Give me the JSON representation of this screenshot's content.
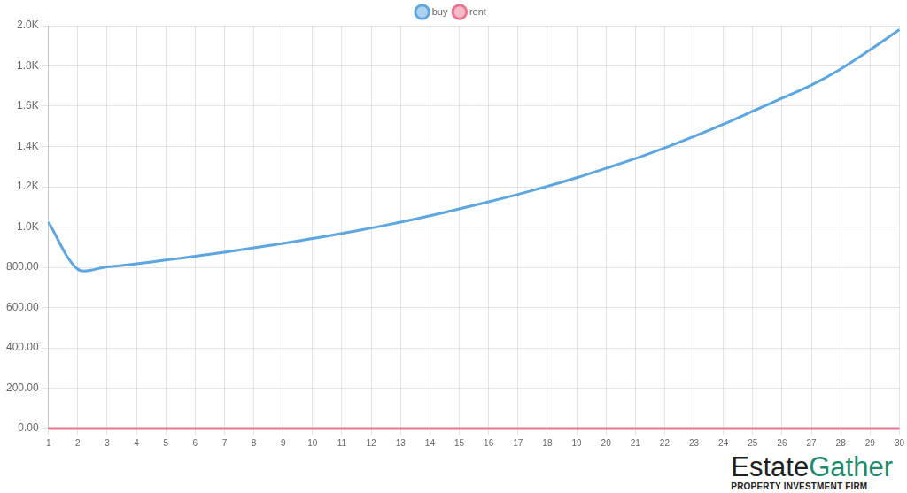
{
  "chart_data": {
    "type": "line",
    "categories": [
      1,
      2,
      3,
      4,
      5,
      6,
      7,
      8,
      9,
      10,
      11,
      12,
      13,
      14,
      15,
      16,
      17,
      18,
      19,
      20,
      21,
      22,
      23,
      24,
      25,
      26,
      27,
      28,
      29,
      30
    ],
    "series": [
      {
        "name": "buy",
        "color": "#5ea6e0",
        "values": [
          1024,
          790,
          802,
          818,
          836,
          855,
          875,
          897,
          919,
          943,
          968,
          995,
          1024,
          1056,
          1090,
          1125,
          1162,
          1202,
          1245,
          1292,
          1340,
          1393,
          1450,
          1510,
          1575,
          1640,
          1705,
          1785,
          1880,
          1980
        ]
      },
      {
        "name": "rent",
        "color": "#ec7592",
        "values": [
          0,
          0,
          0,
          0,
          0,
          0,
          0,
          0,
          0,
          0,
          0,
          0,
          0,
          0,
          0,
          0,
          0,
          0,
          0,
          0,
          0,
          0,
          0,
          0,
          0,
          0,
          0,
          0,
          0,
          0
        ]
      }
    ],
    "ylim": [
      0,
      2000
    ],
    "yticks": [
      {
        "value": 0,
        "label": "0.00"
      },
      {
        "value": 200,
        "label": "200.00"
      },
      {
        "value": 400,
        "label": "400.00"
      },
      {
        "value": 600,
        "label": "600.00"
      },
      {
        "value": 800,
        "label": "800.00"
      },
      {
        "value": 1000,
        "label": "1.0K"
      },
      {
        "value": 1200,
        "label": "1.2K"
      },
      {
        "value": 1400,
        "label": "1.4K"
      },
      {
        "value": 1600,
        "label": "1.6K"
      },
      {
        "value": 1800,
        "label": "1.8K"
      },
      {
        "value": 2000,
        "label": "2.0K"
      }
    ],
    "grid": true,
    "legend": "top",
    "annotations": [
      "Estate",
      "Gather",
      "PROPERTY INVESTMENT FIRM"
    ]
  }
}
